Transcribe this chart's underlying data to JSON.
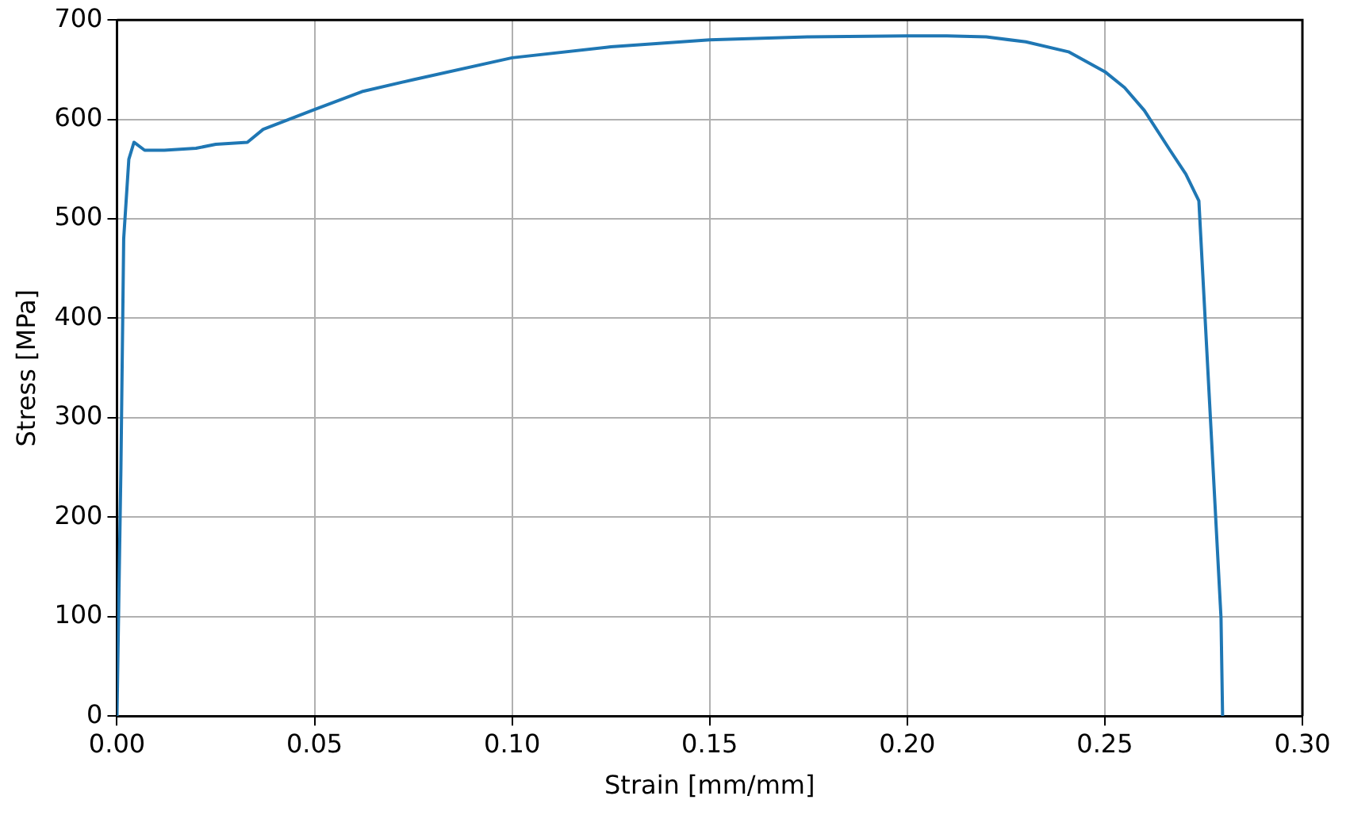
{
  "chart_data": {
    "type": "line",
    "xlabel": "Strain [mm/mm]",
    "ylabel": "Stress [MPa]",
    "xlim": [
      0,
      0.3
    ],
    "xticks": [
      {
        "value": 0,
        "label": "0.00"
      },
      {
        "value": 0.05,
        "label": "0.05"
      },
      {
        "value": 0.1,
        "label": "0.10"
      },
      {
        "value": 0.15,
        "label": "0.15"
      },
      {
        "value": 0.2,
        "label": "0.20"
      },
      {
        "value": 0.25,
        "label": "0.25"
      },
      {
        "value": 0.3,
        "label": "0.30"
      }
    ],
    "ylim": [
      0,
      700
    ],
    "yticks": [
      0,
      100,
      200,
      300,
      400,
      500,
      600,
      700
    ],
    "grid": true,
    "marker": "none",
    "line_style": "solid",
    "series": [
      {
        "color": "#1f77b4",
        "x": [
          0,
          0.001,
          0.0017,
          0.003,
          0.0043,
          0.007,
          0.012,
          0.02,
          0.025,
          0.033,
          0.037,
          0.05,
          0.062,
          0.075,
          0.1,
          0.125,
          0.15,
          0.175,
          0.2,
          0.21,
          0.22,
          0.23,
          0.2408,
          0.25,
          0.255,
          0.26,
          0.2665,
          0.2705,
          0.2738,
          0.2794,
          0.2798
        ],
        "values": [
          0,
          250,
          480,
          560,
          577,
          569,
          569,
          571,
          575,
          577,
          590,
          610,
          628,
          640,
          662,
          673,
          680,
          683,
          684,
          684,
          683,
          678,
          668,
          648,
          632,
          609,
          569,
          545,
          518,
          99,
          0
        ]
      }
    ]
  }
}
